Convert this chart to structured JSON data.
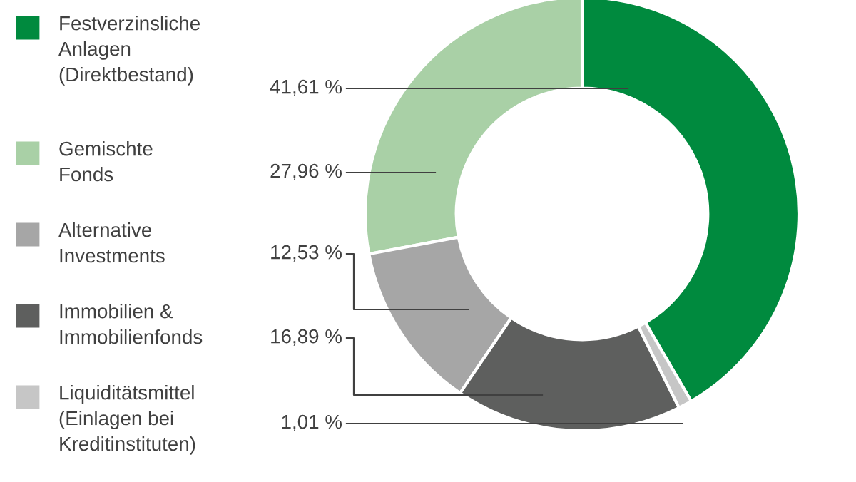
{
  "chart_data": {
    "type": "donut",
    "categories": [
      "Festverzinsliche\nAnlagen\n(Direktbestand)",
      "Gemischte\nFonds",
      "Alternative\nInvestments",
      "Immobilien &\nImmobilienfonds",
      "Liquiditätsmittel\n(Einlagen bei\nKreditinstituten)"
    ],
    "values": [
      41.61,
      27.96,
      12.53,
      16.89,
      1.01
    ],
    "value_labels": [
      "41,61 %",
      "27,96 %",
      "12,53 %",
      "16,89 %",
      "1,01 %"
    ],
    "colors": [
      "#008a3e",
      "#a9d0a6",
      "#a6a6a6",
      "#5e5f5e",
      "#c6c6c6"
    ],
    "legend": "left"
  }
}
